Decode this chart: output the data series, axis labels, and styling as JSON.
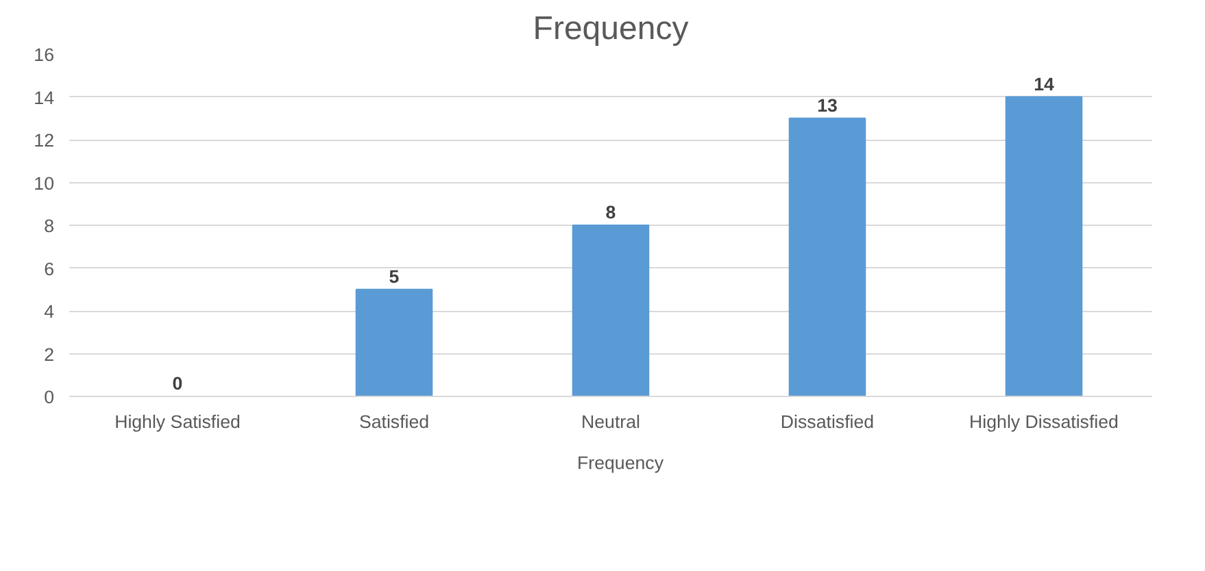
{
  "chart_data": {
    "type": "bar",
    "title": "Frequency",
    "categories": [
      "Highly Satisfied",
      "Satisfied",
      "Neutral",
      "Dissatisfied",
      "Highly Dissatisfied"
    ],
    "series": [
      {
        "name": "Frequency",
        "color": "#5b9bd5",
        "values": [
          0,
          5,
          8,
          13,
          14
        ]
      }
    ],
    "ylim": [
      0,
      16
    ],
    "yticks": [
      0,
      2,
      4,
      6,
      8,
      10,
      12,
      14,
      16
    ],
    "grid": "y",
    "legend": "bottom",
    "data_labels": true
  }
}
